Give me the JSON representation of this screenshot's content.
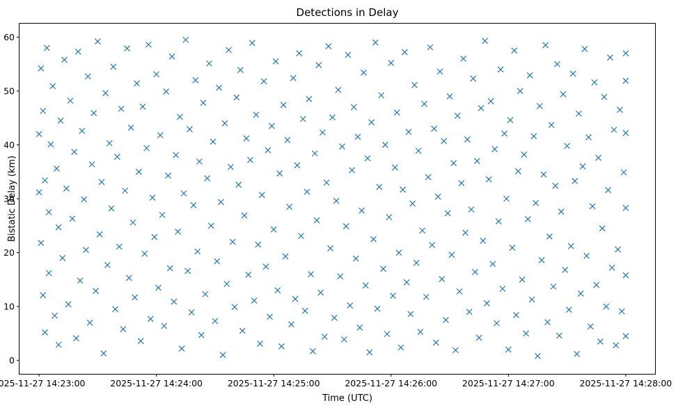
{
  "chart_data": {
    "type": "scatter",
    "title": "Detections in Delay",
    "xlabel": "Time (UTC)",
    "ylabel": "Bistatic Delay (km)",
    "marker": "x",
    "color": "#1f77b4",
    "grid": false,
    "legend": "none",
    "xlim": [
      "2025-11-27 14:22:50",
      "2025-11-27 14:28:15"
    ],
    "ylim": [
      -2.5,
      62.5
    ],
    "xticks": [
      "2025-11-27 14:23:00",
      "2025-11-27 14:24:00",
      "2025-11-27 14:25:00",
      "2025-11-27 14:26:00",
      "2025-11-27 14:27:00",
      "2025-11-27 14:28:00"
    ],
    "yticks": [
      0,
      10,
      20,
      30,
      40,
      50,
      60
    ],
    "points": [
      [
        "2025-11-27 14:23:00",
        42.0
      ],
      [
        "2025-11-27 14:23:00",
        31.2
      ],
      [
        "2025-11-27 14:23:01",
        54.2
      ],
      [
        "2025-11-27 14:23:01",
        21.8
      ],
      [
        "2025-11-27 14:23:02",
        12.1
      ],
      [
        "2025-11-27 14:23:02",
        46.3
      ],
      [
        "2025-11-27 14:23:03",
        33.4
      ],
      [
        "2025-11-27 14:23:03",
        5.2
      ],
      [
        "2025-11-27 14:23:04",
        58.0
      ],
      [
        "2025-11-27 14:23:05",
        27.5
      ],
      [
        "2025-11-27 14:23:05",
        16.2
      ],
      [
        "2025-11-27 14:23:06",
        40.1
      ],
      [
        "2025-11-27 14:23:07",
        50.9
      ],
      [
        "2025-11-27 14:23:08",
        8.3
      ],
      [
        "2025-11-27 14:23:09",
        35.6
      ],
      [
        "2025-11-27 14:23:10",
        24.7
      ],
      [
        "2025-11-27 14:23:10",
        2.9
      ],
      [
        "2025-11-27 14:23:11",
        44.5
      ],
      [
        "2025-11-27 14:23:12",
        19.0
      ],
      [
        "2025-11-27 14:23:13",
        55.8
      ],
      [
        "2025-11-27 14:23:14",
        31.9
      ],
      [
        "2025-11-27 14:23:15",
        10.4
      ],
      [
        "2025-11-27 14:23:16",
        48.2
      ],
      [
        "2025-11-27 14:23:17",
        26.3
      ],
      [
        "2025-11-27 14:23:18",
        38.7
      ],
      [
        "2025-11-27 14:23:19",
        4.1
      ],
      [
        "2025-11-27 14:23:20",
        57.3
      ],
      [
        "2025-11-27 14:23:21",
        14.8
      ],
      [
        "2025-11-27 14:23:22",
        42.6
      ],
      [
        "2025-11-27 14:23:23",
        29.9
      ],
      [
        "2025-11-27 14:23:24",
        20.5
      ],
      [
        "2025-11-27 14:23:25",
        52.7
      ],
      [
        "2025-11-27 14:23:26",
        7.0
      ],
      [
        "2025-11-27 14:23:27",
        36.4
      ],
      [
        "2025-11-27 14:23:28",
        45.9
      ],
      [
        "2025-11-27 14:23:29",
        12.9
      ],
      [
        "2025-11-27 14:23:30",
        59.2
      ],
      [
        "2025-11-27 14:23:31",
        23.4
      ],
      [
        "2025-11-27 14:23:32",
        33.1
      ],
      [
        "2025-11-27 14:23:33",
        1.3
      ],
      [
        "2025-11-27 14:23:34",
        49.6
      ],
      [
        "2025-11-27 14:23:35",
        17.7
      ],
      [
        "2025-11-27 14:23:36",
        40.3
      ],
      [
        "2025-11-27 14:23:37",
        28.2
      ],
      [
        "2025-11-27 14:23:38",
        54.5
      ],
      [
        "2025-11-27 14:23:39",
        9.5
      ],
      [
        "2025-11-27 14:23:40",
        37.8
      ],
      [
        "2025-11-27 14:23:41",
        21.1
      ],
      [
        "2025-11-27 14:23:42",
        46.7
      ],
      [
        "2025-11-27 14:23:43",
        5.8
      ],
      [
        "2025-11-27 14:23:44",
        31.5
      ],
      [
        "2025-11-27 14:23:45",
        57.9
      ],
      [
        "2025-11-27 14:23:46",
        15.3
      ],
      [
        "2025-11-27 14:23:47",
        43.2
      ],
      [
        "2025-11-27 14:23:48",
        25.6
      ],
      [
        "2025-11-27 14:23:49",
        11.7
      ],
      [
        "2025-11-27 14:23:50",
        51.4
      ],
      [
        "2025-11-27 14:23:51",
        35.0
      ],
      [
        "2025-11-27 14:23:52",
        3.6
      ],
      [
        "2025-11-27 14:23:53",
        47.1
      ],
      [
        "2025-11-27 14:23:54",
        19.8
      ],
      [
        "2025-11-27 14:23:55",
        39.4
      ],
      [
        "2025-11-27 14:23:56",
        58.6
      ],
      [
        "2025-11-27 14:23:57",
        7.7
      ],
      [
        "2025-11-27 14:23:58",
        30.2
      ],
      [
        "2025-11-27 14:23:59",
        22.9
      ],
      [
        "2025-11-27 14:24:00",
        53.1
      ],
      [
        "2025-11-27 14:24:01",
        13.5
      ],
      [
        "2025-11-27 14:24:02",
        41.8
      ],
      [
        "2025-11-27 14:24:03",
        27.0
      ],
      [
        "2025-11-27 14:24:04",
        6.4
      ],
      [
        "2025-11-27 14:24:05",
        49.9
      ],
      [
        "2025-11-27 14:24:06",
        34.3
      ],
      [
        "2025-11-27 14:24:07",
        17.1
      ],
      [
        "2025-11-27 14:24:08",
        56.4
      ],
      [
        "2025-11-27 14:24:09",
        10.9
      ],
      [
        "2025-11-27 14:24:10",
        38.1
      ],
      [
        "2025-11-27 14:24:11",
        23.9
      ],
      [
        "2025-11-27 14:24:12",
        45.2
      ],
      [
        "2025-11-27 14:24:13",
        2.2
      ],
      [
        "2025-11-27 14:24:14",
        31.0
      ],
      [
        "2025-11-27 14:24:15",
        59.5
      ],
      [
        "2025-11-27 14:24:16",
        16.6
      ],
      [
        "2025-11-27 14:24:17",
        42.9
      ],
      [
        "2025-11-27 14:24:18",
        8.9
      ],
      [
        "2025-11-27 14:24:19",
        28.8
      ],
      [
        "2025-11-27 14:24:20",
        52.0
      ],
      [
        "2025-11-27 14:24:21",
        20.2
      ],
      [
        "2025-11-27 14:24:22",
        36.9
      ],
      [
        "2025-11-27 14:24:23",
        4.7
      ],
      [
        "2025-11-27 14:24:24",
        47.8
      ],
      [
        "2025-11-27 14:24:25",
        12.3
      ],
      [
        "2025-11-27 14:24:26",
        33.8
      ],
      [
        "2025-11-27 14:24:27",
        55.1
      ],
      [
        "2025-11-27 14:24:28",
        25.0
      ],
      [
        "2025-11-27 14:24:29",
        40.6
      ],
      [
        "2025-11-27 14:24:30",
        7.3
      ],
      [
        "2025-11-27 14:24:31",
        18.4
      ],
      [
        "2025-11-27 14:24:32",
        50.6
      ],
      [
        "2025-11-27 14:24:33",
        29.4
      ],
      [
        "2025-11-27 14:24:34",
        1.0
      ],
      [
        "2025-11-27 14:24:35",
        44.0
      ],
      [
        "2025-11-27 14:24:36",
        14.2
      ],
      [
        "2025-11-27 14:24:37",
        57.6
      ],
      [
        "2025-11-27 14:24:38",
        35.9
      ],
      [
        "2025-11-27 14:24:39",
        22.0
      ],
      [
        "2025-11-27 14:24:40",
        9.9
      ],
      [
        "2025-11-27 14:24:41",
        48.8
      ],
      [
        "2025-11-27 14:24:42",
        32.6
      ],
      [
        "2025-11-27 14:24:43",
        53.9
      ],
      [
        "2025-11-27 14:24:44",
        5.5
      ],
      [
        "2025-11-27 14:24:45",
        26.9
      ],
      [
        "2025-11-27 14:24:46",
        41.2
      ],
      [
        "2025-11-27 14:24:47",
        15.9
      ],
      [
        "2025-11-27 14:24:48",
        37.2
      ],
      [
        "2025-11-27 14:24:49",
        58.9
      ],
      [
        "2025-11-27 14:24:50",
        11.1
      ],
      [
        "2025-11-27 14:24:51",
        45.6
      ],
      [
        "2025-11-27 14:24:52",
        21.5
      ],
      [
        "2025-11-27 14:24:53",
        3.1
      ],
      [
        "2025-11-27 14:24:54",
        30.7
      ],
      [
        "2025-11-27 14:24:55",
        51.8
      ],
      [
        "2025-11-27 14:24:56",
        17.4
      ],
      [
        "2025-11-27 14:24:57",
        39.0
      ],
      [
        "2025-11-27 14:24:58",
        8.1
      ],
      [
        "2025-11-27 14:24:59",
        43.5
      ],
      [
        "2025-11-27 14:25:00",
        24.3
      ],
      [
        "2025-11-27 14:25:01",
        55.5
      ],
      [
        "2025-11-27 14:25:02",
        13.0
      ],
      [
        "2025-11-27 14:25:03",
        34.7
      ],
      [
        "2025-11-27 14:25:04",
        2.6
      ],
      [
        "2025-11-27 14:25:05",
        47.4
      ],
      [
        "2025-11-27 14:25:06",
        19.3
      ],
      [
        "2025-11-27 14:25:07",
        40.9
      ],
      [
        "2025-11-27 14:25:08",
        28.5
      ],
      [
        "2025-11-27 14:25:09",
        6.7
      ],
      [
        "2025-11-27 14:25:10",
        52.4
      ],
      [
        "2025-11-27 14:25:11",
        11.4
      ],
      [
        "2025-11-27 14:25:12",
        36.2
      ],
      [
        "2025-11-27 14:25:13",
        57.0
      ],
      [
        "2025-11-27 14:25:14",
        23.1
      ],
      [
        "2025-11-27 14:25:15",
        44.8
      ],
      [
        "2025-11-27 14:25:16",
        9.2
      ],
      [
        "2025-11-27 14:25:17",
        31.3
      ],
      [
        "2025-11-27 14:25:18",
        48.5
      ],
      [
        "2025-11-27 14:25:19",
        16.0
      ],
      [
        "2025-11-27 14:25:20",
        1.7
      ],
      [
        "2025-11-27 14:25:21",
        38.4
      ],
      [
        "2025-11-27 14:25:22",
        26.0
      ],
      [
        "2025-11-27 14:25:23",
        54.8
      ],
      [
        "2025-11-27 14:25:24",
        12.6
      ],
      [
        "2025-11-27 14:25:25",
        42.3
      ],
      [
        "2025-11-27 14:25:26",
        4.4
      ],
      [
        "2025-11-27 14:25:27",
        33.0
      ],
      [
        "2025-11-27 14:25:28",
        58.3
      ],
      [
        "2025-11-27 14:25:29",
        20.8
      ],
      [
        "2025-11-27 14:25:30",
        45.1
      ],
      [
        "2025-11-27 14:25:31",
        7.9
      ],
      [
        "2025-11-27 14:25:32",
        29.6
      ],
      [
        "2025-11-27 14:25:33",
        50.2
      ],
      [
        "2025-11-27 14:25:34",
        15.6
      ],
      [
        "2025-11-27 14:25:35",
        39.7
      ],
      [
        "2025-11-27 14:25:36",
        3.9
      ],
      [
        "2025-11-27 14:25:37",
        24.9
      ],
      [
        "2025-11-27 14:25:38",
        56.7
      ],
      [
        "2025-11-27 14:25:39",
        10.2
      ],
      [
        "2025-11-27 14:25:40",
        35.3
      ],
      [
        "2025-11-27 14:25:41",
        47.0
      ],
      [
        "2025-11-27 14:25:42",
        18.9
      ],
      [
        "2025-11-27 14:25:43",
        41.5
      ],
      [
        "2025-11-27 14:25:44",
        6.1
      ],
      [
        "2025-11-27 14:25:45",
        27.8
      ],
      [
        "2025-11-27 14:25:46",
        53.4
      ],
      [
        "2025-11-27 14:25:47",
        13.9
      ],
      [
        "2025-11-27 14:25:48",
        37.5
      ],
      [
        "2025-11-27 14:25:49",
        1.5
      ],
      [
        "2025-11-27 14:25:50",
        44.2
      ],
      [
        "2025-11-27 14:25:51",
        22.5
      ],
      [
        "2025-11-27 14:25:52",
        59.0
      ],
      [
        "2025-11-27 14:25:53",
        9.6
      ],
      [
        "2025-11-27 14:25:54",
        32.2
      ],
      [
        "2025-11-27 14:25:55",
        49.2
      ],
      [
        "2025-11-27 14:25:56",
        17.0
      ],
      [
        "2025-11-27 14:25:57",
        40.0
      ],
      [
        "2025-11-27 14:25:58",
        4.9
      ],
      [
        "2025-11-27 14:25:59",
        26.6
      ],
      [
        "2025-11-27 14:26:00",
        55.2
      ],
      [
        "2025-11-27 14:26:01",
        12.0
      ],
      [
        "2025-11-27 14:26:02",
        35.8
      ],
      [
        "2025-11-27 14:26:03",
        46.0
      ],
      [
        "2025-11-27 14:26:04",
        20.0
      ],
      [
        "2025-11-27 14:26:05",
        2.4
      ],
      [
        "2025-11-27 14:26:06",
        31.7
      ],
      [
        "2025-11-27 14:26:07",
        57.2
      ],
      [
        "2025-11-27 14:26:08",
        14.5
      ],
      [
        "2025-11-27 14:26:09",
        42.4
      ],
      [
        "2025-11-27 14:26:10",
        8.6
      ],
      [
        "2025-11-27 14:26:11",
        29.1
      ],
      [
        "2025-11-27 14:26:12",
        51.1
      ],
      [
        "2025-11-27 14:26:13",
        18.1
      ],
      [
        "2025-11-27 14:26:14",
        38.9
      ],
      [
        "2025-11-27 14:26:15",
        5.3
      ],
      [
        "2025-11-27 14:26:16",
        24.1
      ],
      [
        "2025-11-27 14:26:17",
        47.6
      ],
      [
        "2025-11-27 14:26:18",
        11.8
      ],
      [
        "2025-11-27 14:26:19",
        34.0
      ],
      [
        "2025-11-27 14:26:20",
        58.1
      ],
      [
        "2025-11-27 14:26:21",
        21.4
      ],
      [
        "2025-11-27 14:26:22",
        43.0
      ],
      [
        "2025-11-27 14:26:23",
        3.3
      ],
      [
        "2025-11-27 14:26:24",
        30.4
      ],
      [
        "2025-11-27 14:26:25",
        53.6
      ],
      [
        "2025-11-27 14:26:26",
        15.1
      ],
      [
        "2025-11-27 14:26:27",
        40.7
      ],
      [
        "2025-11-27 14:26:28",
        7.5
      ],
      [
        "2025-11-27 14:26:29",
        27.3
      ],
      [
        "2025-11-27 14:26:30",
        49.0
      ],
      [
        "2025-11-27 14:26:31",
        19.6
      ],
      [
        "2025-11-27 14:26:32",
        36.6
      ],
      [
        "2025-11-27 14:26:33",
        1.9
      ],
      [
        "2025-11-27 14:26:34",
        45.4
      ],
      [
        "2025-11-27 14:26:35",
        12.8
      ],
      [
        "2025-11-27 14:26:36",
        32.9
      ],
      [
        "2025-11-27 14:26:37",
        56.0
      ],
      [
        "2025-11-27 14:26:38",
        23.7
      ],
      [
        "2025-11-27 14:26:39",
        41.0
      ],
      [
        "2025-11-27 14:26:40",
        9.0
      ],
      [
        "2025-11-27 14:26:41",
        28.0
      ],
      [
        "2025-11-27 14:26:42",
        52.3
      ],
      [
        "2025-11-27 14:26:43",
        16.4
      ],
      [
        "2025-11-27 14:26:44",
        37.0
      ],
      [
        "2025-11-27 14:26:45",
        4.2
      ],
      [
        "2025-11-27 14:26:46",
        46.8
      ],
      [
        "2025-11-27 14:26:47",
        22.2
      ],
      [
        "2025-11-27 14:26:48",
        59.3
      ],
      [
        "2025-11-27 14:26:49",
        10.6
      ],
      [
        "2025-11-27 14:26:50",
        33.6
      ],
      [
        "2025-11-27 14:26:51",
        48.1
      ],
      [
        "2025-11-27 14:26:52",
        17.9
      ],
      [
        "2025-11-27 14:26:53",
        39.2
      ],
      [
        "2025-11-27 14:26:54",
        6.9
      ],
      [
        "2025-11-27 14:26:55",
        25.8
      ],
      [
        "2025-11-27 14:26:56",
        54.0
      ],
      [
        "2025-11-27 14:26:57",
        13.3
      ],
      [
        "2025-11-27 14:26:58",
        42.1
      ],
      [
        "2025-11-27 14:26:59",
        30.0
      ],
      [
        "2025-11-27 14:27:00",
        2.0
      ],
      [
        "2025-11-27 14:27:01",
        44.6
      ],
      [
        "2025-11-27 14:27:02",
        20.9
      ],
      [
        "2025-11-27 14:27:03",
        57.5
      ],
      [
        "2025-11-27 14:27:04",
        8.4
      ],
      [
        "2025-11-27 14:27:05",
        35.1
      ],
      [
        "2025-11-27 14:27:06",
        50.0
      ],
      [
        "2025-11-27 14:27:07",
        15.0
      ],
      [
        "2025-11-27 14:27:08",
        38.2
      ],
      [
        "2025-11-27 14:27:09",
        5.0
      ],
      [
        "2025-11-27 14:27:10",
        26.2
      ],
      [
        "2025-11-27 14:27:11",
        52.9
      ],
      [
        "2025-11-27 14:27:12",
        11.3
      ],
      [
        "2025-11-27 14:27:13",
        41.6
      ],
      [
        "2025-11-27 14:27:14",
        29.2
      ],
      [
        "2025-11-27 14:27:15",
        0.8
      ],
      [
        "2025-11-27 14:27:16",
        47.2
      ],
      [
        "2025-11-27 14:27:17",
        18.6
      ],
      [
        "2025-11-27 14:27:18",
        34.5
      ],
      [
        "2025-11-27 14:27:19",
        58.5
      ],
      [
        "2025-11-27 14:27:20",
        7.1
      ],
      [
        "2025-11-27 14:27:21",
        23.0
      ],
      [
        "2025-11-27 14:27:22",
        43.7
      ],
      [
        "2025-11-27 14:27:23",
        13.7
      ],
      [
        "2025-11-27 14:27:24",
        32.4
      ],
      [
        "2025-11-27 14:27:25",
        55.0
      ],
      [
        "2025-11-27 14:27:26",
        4.6
      ],
      [
        "2025-11-27 14:27:27",
        27.6
      ],
      [
        "2025-11-27 14:27:28",
        49.4
      ],
      [
        "2025-11-27 14:27:29",
        16.8
      ],
      [
        "2025-11-27 14:27:30",
        39.8
      ],
      [
        "2025-11-27 14:27:31",
        9.4
      ],
      [
        "2025-11-27 14:27:32",
        21.2
      ],
      [
        "2025-11-27 14:27:33",
        53.2
      ],
      [
        "2025-11-27 14:27:34",
        33.3
      ],
      [
        "2025-11-27 14:27:35",
        1.2
      ],
      [
        "2025-11-27 14:27:36",
        45.8
      ],
      [
        "2025-11-27 14:27:37",
        12.4
      ],
      [
        "2025-11-27 14:27:38",
        36.0
      ],
      [
        "2025-11-27 14:27:39",
        57.8
      ],
      [
        "2025-11-27 14:27:40",
        19.4
      ],
      [
        "2025-11-27 14:27:41",
        41.4
      ],
      [
        "2025-11-27 14:27:42",
        6.3
      ],
      [
        "2025-11-27 14:27:43",
        28.6
      ],
      [
        "2025-11-27 14:27:44",
        51.6
      ],
      [
        "2025-11-27 14:27:45",
        14.0
      ],
      [
        "2025-11-27 14:27:46",
        37.6
      ],
      [
        "2025-11-27 14:27:47",
        3.5
      ],
      [
        "2025-11-27 14:27:48",
        24.5
      ],
      [
        "2025-11-27 14:27:49",
        48.9
      ],
      [
        "2025-11-27 14:27:50",
        10.0
      ],
      [
        "2025-11-27 14:27:51",
        31.6
      ],
      [
        "2025-11-27 14:27:52",
        56.2
      ],
      [
        "2025-11-27 14:27:53",
        17.2
      ],
      [
        "2025-11-27 14:27:54",
        42.8
      ],
      [
        "2025-11-27 14:27:55",
        2.8
      ],
      [
        "2025-11-27 14:27:56",
        20.6
      ],
      [
        "2025-11-27 14:27:57",
        46.5
      ],
      [
        "2025-11-27 14:27:58",
        9.1
      ],
      [
        "2025-11-27 14:27:59",
        34.9
      ],
      [
        "2025-11-27 14:28:00",
        15.8
      ],
      [
        "2025-11-27 14:28:00",
        28.3
      ],
      [
        "2025-11-27 14:28:00",
        42.2
      ],
      [
        "2025-11-27 14:28:00",
        51.9
      ],
      [
        "2025-11-27 14:28:00",
        4.5
      ],
      [
        "2025-11-27 14:28:00",
        57.0
      ]
    ]
  }
}
